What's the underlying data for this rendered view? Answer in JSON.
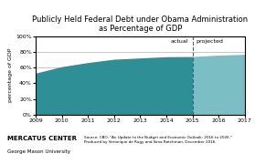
{
  "chart_data": {
    "type": "area",
    "title": "Publicly Held Federal Debt under Obama Administration\nas Percentage of GDP",
    "ylabel": "percentage of GDP",
    "xlim": [
      2009,
      2017
    ],
    "ylim": [
      0,
      1.0
    ],
    "xticks": [
      2009,
      2010,
      2011,
      2012,
      2013,
      2014,
      2015,
      2016,
      2017
    ],
    "yticks": [
      {
        "value": 0.0,
        "label": "0%"
      },
      {
        "value": 0.2,
        "label": "20%"
      },
      {
        "value": 0.4,
        "label": "40%"
      },
      {
        "value": 0.6,
        "label": "60%"
      },
      {
        "value": 0.8,
        "label": "80%"
      },
      {
        "value": 1.0,
        "label": "100%"
      }
    ],
    "grid": "y",
    "series": [
      {
        "name": "actual",
        "color": "#2e8f96",
        "x": [
          2009,
          2010,
          2011,
          2012,
          2013,
          2014,
          2015
        ],
        "values": [
          0.53,
          0.612,
          0.664,
          0.706,
          0.722,
          0.738,
          0.74
        ]
      },
      {
        "name": "projected",
        "color": "#7bbfc4",
        "x": [
          2015,
          2016,
          2017
        ],
        "values": [
          0.74,
          0.758,
          0.768
        ]
      }
    ],
    "annotations": [
      "MERCATUS CENTER",
      "George Mason University",
      "Source: CBO, \"An Update to the Budget and Economic Outlook: 2016 to 2026.\"\nProduced by Veronique de Rugy and Ilana Ratchman, December 2016."
    ]
  }
}
